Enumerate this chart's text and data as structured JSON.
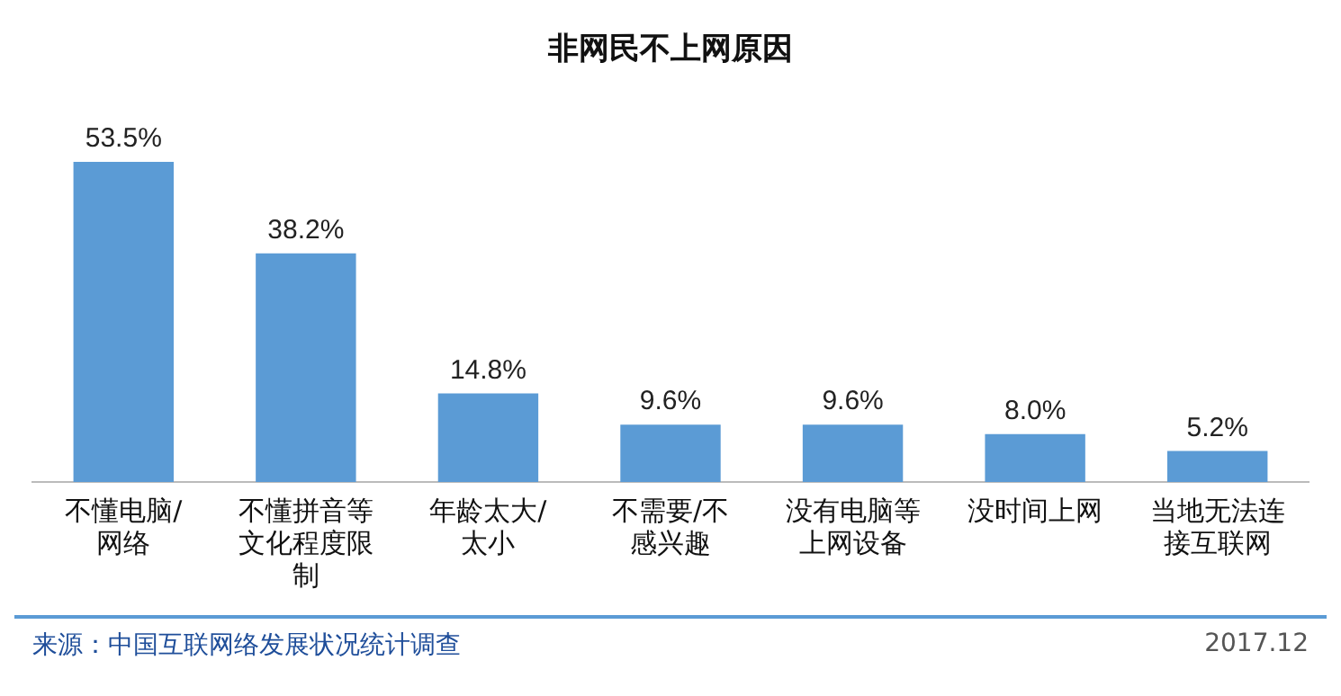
{
  "chart_data": {
    "type": "bar",
    "title": "非网民不上网原因",
    "categories": [
      "不懂电脑/网络",
      "不懂拼音等文化程度限制",
      "年龄太大/太小",
      "不需要/不感兴趣",
      "没有电脑等上网设备",
      "没时间上网",
      "当地无法连接互联网"
    ],
    "values": [
      53.5,
      38.2,
      14.8,
      9.6,
      9.6,
      8.0,
      5.2
    ],
    "value_labels": [
      "53.5%",
      "38.2%",
      "14.8%",
      "9.6%",
      "9.6%",
      "8.0%",
      "5.2%"
    ],
    "color": "#5b9bd5",
    "grid": false,
    "legend": false,
    "tick_labels": "x",
    "annotations": [
      "来源：中国互联网络发展状况统计调查",
      "2017.12"
    ]
  }
}
